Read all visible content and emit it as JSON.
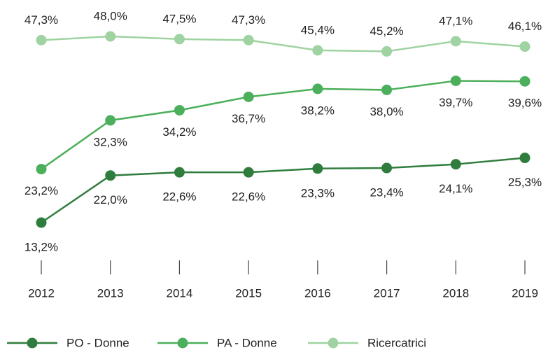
{
  "chart_data": {
    "type": "line",
    "categories": [
      "2012",
      "2013",
      "2014",
      "2015",
      "2016",
      "2017",
      "2018",
      "2019"
    ],
    "series": [
      {
        "name": "PO - Donne",
        "color": "#2f7d3d",
        "values": [
          13.2,
          22.0,
          22.6,
          22.6,
          23.3,
          23.4,
          24.1,
          25.3
        ],
        "value_labels": [
          "13,2%",
          "22,0%",
          "22,6%",
          "22,6%",
          "23,3%",
          "23,4%",
          "24,1%",
          "25,3%"
        ]
      },
      {
        "name": "PA - Donne",
        "color": "#4caf5b",
        "values": [
          23.2,
          32.3,
          34.2,
          36.7,
          38.2,
          38.0,
          39.7,
          39.6
        ],
        "value_labels": [
          "23,2%",
          "32,3%",
          "34,2%",
          "36,7%",
          "38,2%",
          "38,0%",
          "39,7%",
          "39,6%"
        ]
      },
      {
        "name": "Ricercatrici",
        "color": "#9fd3a1",
        "values": [
          47.3,
          48.0,
          47.5,
          47.3,
          45.4,
          45.2,
          47.1,
          46.1
        ],
        "value_labels": [
          "47,3%",
          "48,0%",
          "47,5%",
          "47,3%",
          "45,4%",
          "45,2%",
          "47,1%",
          "46,1%"
        ]
      }
    ]
  }
}
